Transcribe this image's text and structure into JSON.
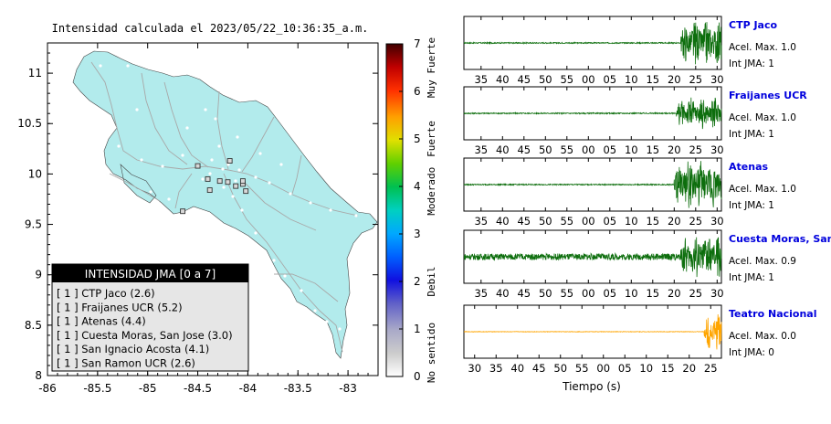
{
  "title": "Intensidad calculada el 2023/05/22_10:36:35_a.m.",
  "colors": {
    "land": "#b2ebec",
    "road": "#a8a8a8",
    "city": "#ffffff",
    "trace_green": "#0d6e0d",
    "trace_orange": "#ffa500",
    "station_name": "#0000dd"
  },
  "map": {
    "x_ticks": [
      "-86",
      "-85.5",
      "-85",
      "-84.5",
      "-84",
      "-83.5",
      "-83"
    ],
    "y_ticks": [
      "11",
      "10.5",
      "10",
      "9.5",
      "9",
      "8.5",
      "8"
    ],
    "lon_range": [
      -86,
      -82.7
    ],
    "lat_range": [
      8,
      11.3
    ],
    "stations": [
      {
        "lon": -84.4,
        "lat": 9.95
      },
      {
        "lon": -84.28,
        "lat": 9.93
      },
      {
        "lon": -84.2,
        "lat": 9.92
      },
      {
        "lon": -84.18,
        "lat": 10.13
      },
      {
        "lon": -84.12,
        "lat": 9.88
      },
      {
        "lon": -84.05,
        "lat": 9.9
      },
      {
        "lon": -84.02,
        "lat": 9.83
      },
      {
        "lon": -84.38,
        "lat": 9.84
      },
      {
        "lon": -84.05,
        "lat": 9.93
      },
      {
        "lon": -84.5,
        "lat": 10.08
      },
      {
        "lon": -84.65,
        "lat": 9.63
      }
    ]
  },
  "legend": {
    "title": "INTENSIDAD JMA [0 a 7]",
    "items": [
      "[ 1 ]  CTP Jaco (2.6)",
      "[ 1 ]  Fraijanes UCR (5.2)",
      "[ 1 ]  Atenas (4.4)",
      "[ 1 ]  Cuesta Moras, San Jose (3.0)",
      "[ 1 ]  San Ignacio Acosta (4.1)",
      "[ 1 ]  San Ramon UCR (2.6)"
    ]
  },
  "colorbar": {
    "ticks": [
      "0",
      "1",
      "2",
      "3",
      "4",
      "5",
      "6",
      "7"
    ],
    "range": [
      0,
      7
    ],
    "class_labels": [
      {
        "label": "No sentido",
        "at": 0.5
      },
      {
        "label": "Debil",
        "at": 2.0
      },
      {
        "label": "Moderado",
        "at": 3.9
      },
      {
        "label": "Fuerte",
        "at": 5.0
      },
      {
        "label": "Muy Fuerte",
        "at": 6.5
      }
    ]
  },
  "chart_data": [
    {
      "type": "line",
      "name": "CTP Jaco",
      "station": "CTP Jaco",
      "acel_label": "Acel. Max. 1.0",
      "int_label": "Int JMA: 1",
      "color": "#0d6e0d",
      "x_ticks": [
        "35",
        "40",
        "45",
        "50",
        "55",
        "00",
        "05",
        "10",
        "15",
        "20",
        "25",
        "30"
      ],
      "x_tick_values": [
        35,
        40,
        45,
        50,
        55,
        60,
        65,
        70,
        75,
        80,
        85,
        90
      ],
      "xlim": [
        31,
        91
      ],
      "burst_start": 81.5,
      "noise_amp": 0.02,
      "burst_amp": 0.85
    },
    {
      "type": "line",
      "name": "Fraijanes UCR",
      "station": "Fraijanes UCR",
      "acel_label": "Acel. Max. 1.0",
      "int_label": "Int JMA: 1",
      "color": "#0d6e0d",
      "x_ticks": [
        "35",
        "40",
        "45",
        "50",
        "55",
        "00",
        "05",
        "10",
        "15",
        "20",
        "25",
        "30"
      ],
      "x_tick_values": [
        35,
        40,
        45,
        50,
        55,
        60,
        65,
        70,
        75,
        80,
        85,
        90
      ],
      "xlim": [
        31,
        91
      ],
      "burst_start": 80.5,
      "noise_amp": 0.02,
      "burst_amp": 0.6
    },
    {
      "type": "line",
      "name": "Atenas",
      "station": "Atenas",
      "acel_label": "Acel. Max. 1.0",
      "int_label": "Int JMA: 1",
      "color": "#0d6e0d",
      "x_ticks": [
        "35",
        "40",
        "45",
        "50",
        "55",
        "00",
        "05",
        "10",
        "15",
        "20",
        "25",
        "30"
      ],
      "x_tick_values": [
        35,
        40,
        45,
        50,
        55,
        60,
        65,
        70,
        75,
        80,
        85,
        90
      ],
      "xlim": [
        31,
        91
      ],
      "burst_start": 80,
      "noise_amp": 0.02,
      "burst_amp": 0.9
    },
    {
      "type": "line",
      "name": "Cuesta Moras, San Jose",
      "station": "Cuesta Moras, San Jose",
      "acel_label": "Acel. Max. 0.9",
      "int_label": "Int JMA: 1",
      "color": "#0d6e0d",
      "x_ticks": [
        "35",
        "40",
        "45",
        "50",
        "55",
        "00",
        "05",
        "10",
        "15",
        "20",
        "25",
        "30"
      ],
      "x_tick_values": [
        35,
        40,
        45,
        50,
        55,
        60,
        65,
        70,
        75,
        80,
        85,
        90
      ],
      "xlim": [
        31,
        91
      ],
      "burst_start": 81.5,
      "noise_amp": 0.12,
      "burst_amp": 0.85
    },
    {
      "type": "line",
      "name": "Teatro Nacional",
      "station": "Teatro Nacional",
      "acel_label": "Acel. Max. 0.0",
      "int_label": "Int JMA: 0",
      "color": "#ffa500",
      "x_ticks": [
        "30",
        "35",
        "40",
        "45",
        "50",
        "55",
        "00",
        "05",
        "10",
        "15",
        "20",
        "25"
      ],
      "x_tick_values": [
        30,
        35,
        40,
        45,
        50,
        55,
        60,
        65,
        70,
        75,
        80,
        85
      ],
      "xlim": [
        27.5,
        87.5
      ],
      "burst_start": 83.5,
      "noise_amp": 0.01,
      "burst_amp": 0.8,
      "xlabel": "Tiempo (s)"
    }
  ]
}
